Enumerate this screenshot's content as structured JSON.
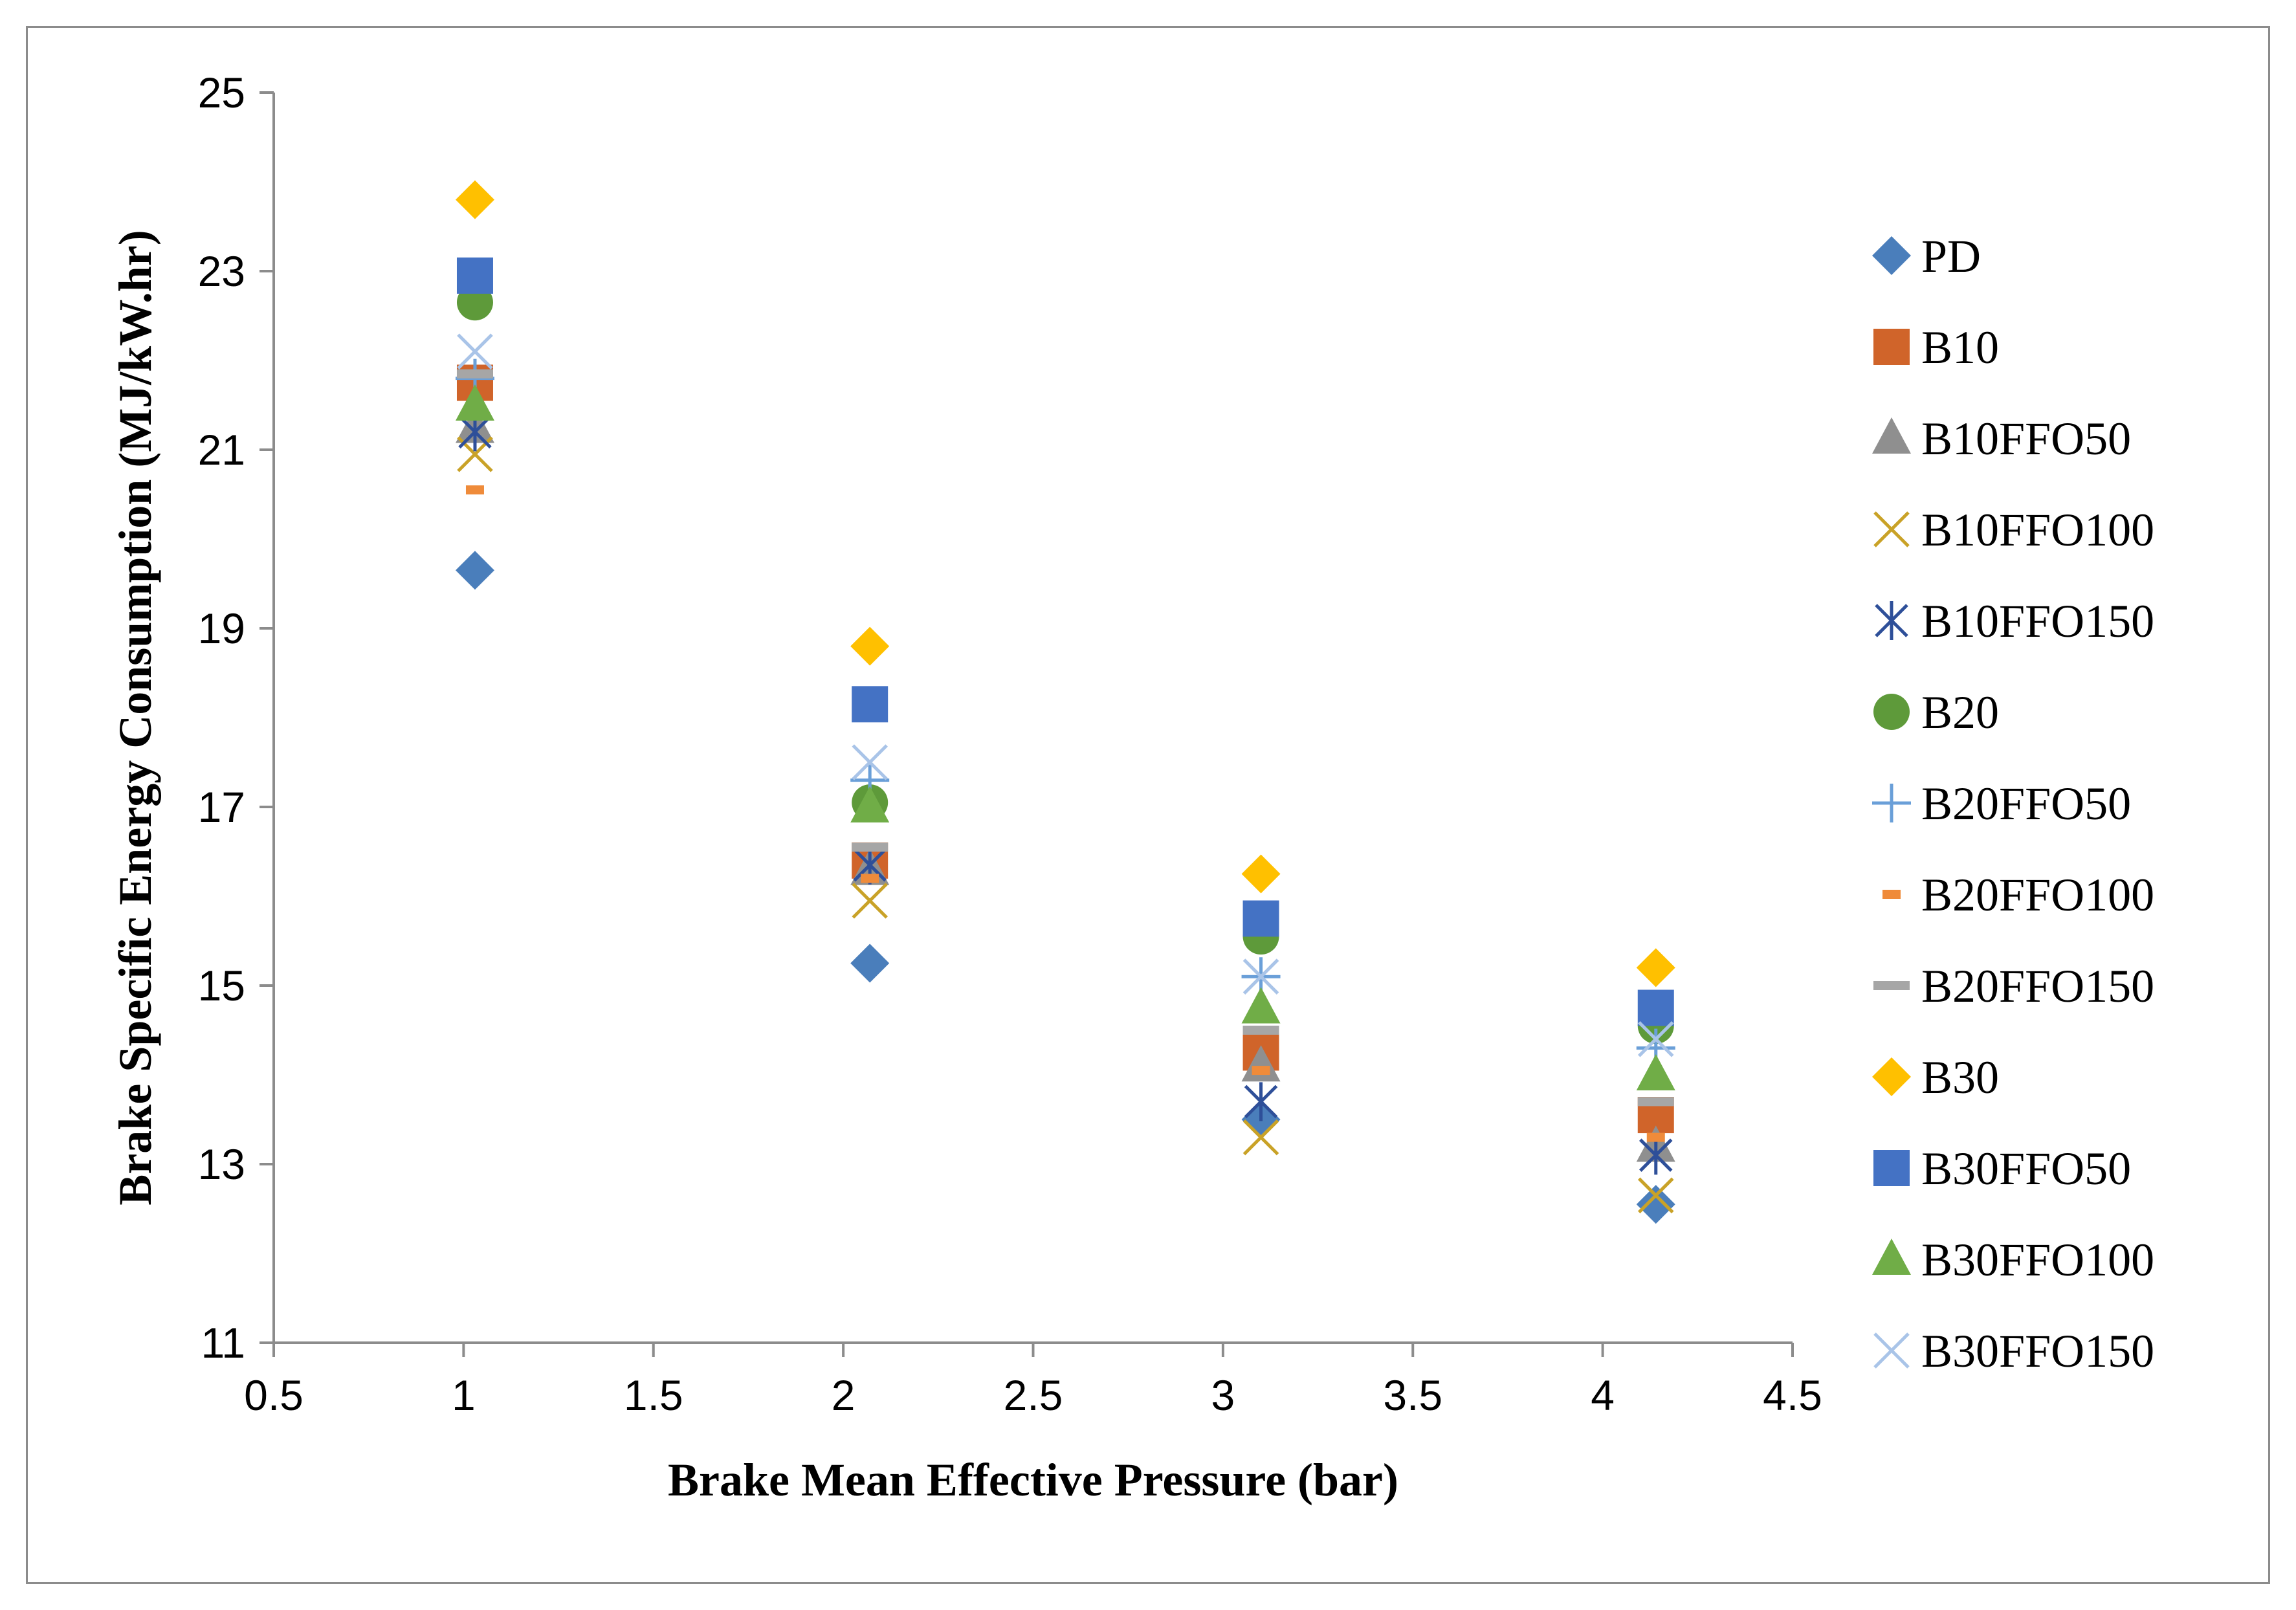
{
  "chart_data": {
    "type": "scatter",
    "title": "",
    "xlabel": "Brake Mean Effective Pressure (bar)",
    "ylabel": "Brake Specific Energy Consumption (MJ/kW.hr)",
    "xlim": [
      0.5,
      4.5
    ],
    "ylim": [
      11,
      25
    ],
    "xticks": [
      "0.5",
      "1",
      "1.5",
      "2",
      "2.5",
      "3",
      "3.5",
      "4",
      "4.5"
    ],
    "yticks": [
      "11",
      "13",
      "15",
      "17",
      "19",
      "21",
      "23",
      "25"
    ],
    "grid": false,
    "legend_position": "right",
    "x": [
      1.03,
      2.07,
      3.1,
      4.14
    ],
    "series": [
      {
        "name": "PD",
        "marker": "diamond",
        "color": "#4a7ebb",
        "values": [
          19.65,
          15.25,
          13.5,
          12.55
        ]
      },
      {
        "name": "B10",
        "marker": "square",
        "color": "#d0642a",
        "values": [
          21.75,
          16.4,
          14.25,
          13.55
        ]
      },
      {
        "name": "B10FFO50",
        "marker": "triangle",
        "color": "#8f8f8f",
        "values": [
          21.25,
          16.3,
          14.1,
          13.2
        ]
      },
      {
        "name": "B10FFO100",
        "marker": "x",
        "color": "#c9a227",
        "values": [
          20.95,
          15.95,
          13.3,
          12.65
        ]
      },
      {
        "name": "B10FFO150",
        "marker": "star",
        "color": "#2e4f99",
        "values": [
          21.2,
          16.35,
          13.7,
          13.1
        ]
      },
      {
        "name": "B20",
        "marker": "circle",
        "color": "#5e9a3a",
        "values": [
          22.65,
          17.05,
          15.55,
          14.55
        ]
      },
      {
        "name": "B20FFO50",
        "marker": "plus",
        "color": "#6a9fd8",
        "values": [
          21.8,
          17.3,
          15.1,
          14.3
        ]
      },
      {
        "name": "B20FFO100",
        "marker": "dash",
        "color": "#ef8b3a",
        "values": [
          20.55,
          16.2,
          14.05,
          13.3
        ]
      },
      {
        "name": "B20FFO150",
        "marker": "bar",
        "color": "#a6a6a6",
        "values": [
          21.85,
          16.55,
          14.5,
          13.7
        ]
      },
      {
        "name": "B30",
        "marker": "diamond",
        "color": "#ffc000",
        "values": [
          23.8,
          18.8,
          16.25,
          15.2
        ]
      },
      {
        "name": "B30FFO50",
        "marker": "square",
        "color": "#4472c4",
        "values": [
          22.95,
          18.15,
          15.75,
          14.75
        ]
      },
      {
        "name": "B30FFO100",
        "marker": "triangle",
        "color": "#70ad47",
        "values": [
          21.5,
          17.0,
          14.75,
          14.0
        ]
      },
      {
        "name": "B30FFO150",
        "marker": "x",
        "color": "#a9c4e8",
        "values": [
          22.1,
          17.5,
          15.1,
          14.4
        ]
      }
    ]
  }
}
